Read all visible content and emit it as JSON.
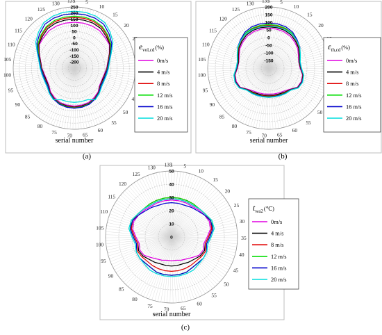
{
  "figure": {
    "panel_labels": [
      "(a)",
      "(b)",
      "(c)"
    ],
    "xlabel": "serial number"
  },
  "colors": {
    "0 m/s": "#e000e0",
    "4 m/s": "#000000",
    "8 m/s": "#e00000",
    "12 m/s": "#00dd00",
    "16 m/s": "#0000cc",
    "20 m/s": "#00dddd"
  },
  "chart_data": [
    {
      "type": "polar-line",
      "panel": "(a)",
      "angle_ticks": [
        1,
        5,
        10,
        15,
        20,
        25,
        30,
        35,
        40,
        45,
        50,
        55,
        60,
        65,
        70,
        75,
        80,
        85,
        90,
        95,
        100,
        105,
        110,
        115,
        120,
        125,
        130,
        135
      ],
      "radial_ticks": [
        250,
        200,
        150,
        100,
        50,
        0,
        -50,
        -100,
        -150,
        -200
      ],
      "rlim": [
        -250,
        250
      ],
      "legend_title_main": "e",
      "legend_title_sub": "vol,cd",
      "legend_title_unit": "(%)",
      "legend_position": "right",
      "series": [
        {
          "name": "0m/s",
          "values": [
            125,
            125,
            124,
            120,
            105,
            95,
            60,
            30,
            15,
            0,
            -5,
            0,
            25,
            40,
            55,
            58,
            60,
            58,
            55,
            40,
            25,
            0,
            -5,
            0,
            15,
            30,
            60,
            95,
            105,
            120,
            124,
            125,
            125
          ]
        },
        {
          "name": "4 m/s",
          "values": [
            150,
            150,
            148,
            140,
            118,
            100,
            62,
            32,
            18,
            5,
            0,
            5,
            30,
            48,
            62,
            65,
            68,
            65,
            62,
            48,
            30,
            5,
            0,
            5,
            18,
            32,
            62,
            100,
            118,
            140,
            148,
            150,
            150
          ]
        },
        {
          "name": "8 m/s",
          "values": [
            165,
            165,
            162,
            152,
            128,
            105,
            65,
            35,
            20,
            8,
            5,
            8,
            32,
            50,
            65,
            70,
            72,
            70,
            65,
            50,
            32,
            8,
            5,
            8,
            20,
            35,
            65,
            105,
            128,
            152,
            162,
            165,
            165
          ]
        },
        {
          "name": "12 m/s",
          "values": [
            175,
            175,
            172,
            160,
            135,
            108,
            68,
            38,
            22,
            10,
            8,
            10,
            34,
            52,
            66,
            72,
            75,
            72,
            66,
            52,
            34,
            10,
            8,
            10,
            22,
            38,
            68,
            108,
            135,
            160,
            172,
            175,
            175
          ]
        },
        {
          "name": "16 m/s",
          "values": [
            195,
            195,
            192,
            182,
            150,
            118,
            72,
            40,
            25,
            12,
            10,
            12,
            36,
            55,
            70,
            76,
            78,
            76,
            70,
            55,
            36,
            12,
            10,
            12,
            25,
            40,
            72,
            118,
            150,
            182,
            192,
            195,
            195
          ]
        },
        {
          "name": "20 m/s",
          "values": [
            215,
            215,
            210,
            198,
            165,
            130,
            78,
            45,
            30,
            20,
            15,
            20,
            40,
            60,
            30,
            30,
            30,
            30,
            30,
            60,
            40,
            20,
            15,
            20,
            30,
            45,
            78,
            130,
            165,
            198,
            210,
            215,
            215
          ]
        }
      ]
    },
    {
      "type": "polar-line",
      "panel": "(b)",
      "angle_ticks": [
        1,
        5,
        10,
        15,
        20,
        25,
        30,
        35,
        40,
        45,
        50,
        55,
        60,
        65,
        70,
        75,
        80,
        85,
        90,
        95,
        100,
        105,
        110,
        115,
        120,
        125,
        130,
        135
      ],
      "radial_ticks": [
        200,
        150,
        100,
        50,
        0,
        -50,
        -100,
        -150
      ],
      "rlim": [
        -200,
        200
      ],
      "legend_title_main": "ε",
      "legend_title_sub": "th,cd",
      "legend_title_unit": "(%)",
      "legend_position": "right",
      "series": [
        {
          "name": "0m/s",
          "values": [
            60,
            60,
            58,
            52,
            40,
            28,
            10,
            0,
            5,
            25,
            30,
            25,
            -5,
            -20,
            -25,
            -28,
            -30,
            -28,
            -25,
            -20,
            -5,
            25,
            30,
            25,
            5,
            0,
            10,
            28,
            40,
            52,
            58,
            60,
            60
          ]
        },
        {
          "name": "4 m/s",
          "values": [
            70,
            70,
            68,
            62,
            48,
            35,
            15,
            2,
            8,
            28,
            34,
            28,
            -2,
            -12,
            -18,
            -20,
            -22,
            -20,
            -18,
            -12,
            -2,
            28,
            34,
            28,
            8,
            2,
            15,
            35,
            48,
            62,
            68,
            70,
            70
          ]
        },
        {
          "name": "8 m/s",
          "values": [
            80,
            80,
            78,
            70,
            55,
            40,
            18,
            5,
            10,
            30,
            36,
            30,
            0,
            -8,
            -12,
            -15,
            -16,
            -15,
            -12,
            -8,
            0,
            30,
            36,
            30,
            10,
            5,
            18,
            40,
            55,
            70,
            78,
            80,
            80
          ]
        },
        {
          "name": "12 m/s",
          "values": [
            85,
            85,
            83,
            75,
            58,
            42,
            20,
            6,
            11,
            31,
            37,
            31,
            1,
            -5,
            -10,
            -12,
            -13,
            -12,
            -10,
            -5,
            1,
            31,
            37,
            31,
            11,
            6,
            20,
            42,
            58,
            75,
            83,
            85,
            85
          ]
        },
        {
          "name": "16 m/s",
          "values": [
            95,
            95,
            92,
            82,
            62,
            45,
            22,
            8,
            12,
            32,
            38,
            32,
            2,
            -2,
            -8,
            -10,
            -10,
            -10,
            -8,
            -2,
            2,
            32,
            38,
            32,
            12,
            8,
            22,
            45,
            62,
            82,
            92,
            95,
            95
          ]
        },
        {
          "name": "20 m/s",
          "values": [
            75,
            75,
            74,
            70,
            58,
            44,
            24,
            10,
            14,
            33,
            40,
            33,
            4,
            0,
            -5,
            -8,
            -8,
            -8,
            -5,
            0,
            4,
            33,
            40,
            33,
            14,
            10,
            24,
            44,
            58,
            70,
            74,
            75,
            75
          ]
        }
      ]
    },
    {
      "type": "polar-line",
      "panel": "(c)",
      "angle_ticks": [
        1,
        5,
        10,
        15,
        20,
        25,
        30,
        35,
        40,
        45,
        50,
        55,
        60,
        65,
        70,
        75,
        80,
        85,
        90,
        95,
        100,
        105,
        110,
        115,
        120,
        125,
        130,
        135
      ],
      "radial_ticks": [
        50,
        40,
        30,
        20,
        10,
        0
      ],
      "rlim": [
        0,
        50
      ],
      "legend_title_main": "t",
      "legend_title_sub": "wa2",
      "legend_title_unit": "(℃)",
      "legend_position": "right",
      "series": [
        {
          "name": "0m/s",
          "values": [
            28,
            28,
            28,
            28,
            29,
            30,
            31,
            30,
            27,
            25,
            26,
            25,
            22,
            20,
            19,
            18,
            18,
            18,
            19,
            20,
            22,
            25,
            26,
            25,
            27,
            30,
            31,
            30,
            29,
            28,
            28,
            28,
            28
          ]
        },
        {
          "name": "4 m/s",
          "values": [
            29,
            29,
            29,
            29,
            30,
            31,
            32,
            31,
            28,
            26,
            27,
            26,
            24,
            23,
            22,
            22,
            22,
            22,
            22,
            23,
            24,
            26,
            27,
            26,
            28,
            31,
            32,
            31,
            30,
            29,
            29,
            29,
            29
          ]
        },
        {
          "name": "8 m/s",
          "values": [
            30,
            30,
            30,
            30,
            30,
            31,
            32,
            31,
            28,
            26,
            28,
            27,
            26,
            26,
            26,
            26,
            26,
            26,
            26,
            26,
            26,
            27,
            28,
            26,
            28,
            31,
            32,
            31,
            30,
            30,
            30,
            30,
            30
          ]
        },
        {
          "name": "12 m/s",
          "values": [
            30,
            30,
            30,
            30,
            30,
            31,
            33,
            32,
            29,
            27,
            29,
            29,
            28,
            28,
            29,
            29,
            29,
            29,
            29,
            28,
            28,
            29,
            29,
            27,
            29,
            32,
            33,
            31,
            30,
            30,
            30,
            30,
            30
          ]
        },
        {
          "name": "16 m/s",
          "values": [
            26,
            26,
            26,
            27,
            28,
            30,
            32,
            32,
            29,
            27,
            29,
            29,
            28,
            28,
            29,
            29,
            29,
            29,
            29,
            28,
            28,
            29,
            29,
            27,
            29,
            32,
            32,
            30,
            28,
            27,
            26,
            26,
            26
          ]
        },
        {
          "name": "20 m/s",
          "values": [
            29,
            29,
            29,
            29,
            30,
            31,
            33,
            33,
            30,
            28,
            29,
            29,
            29,
            30,
            30,
            30,
            30,
            30,
            30,
            30,
            29,
            29,
            29,
            28,
            30,
            33,
            33,
            31,
            30,
            29,
            29,
            29,
            29
          ]
        }
      ]
    }
  ]
}
